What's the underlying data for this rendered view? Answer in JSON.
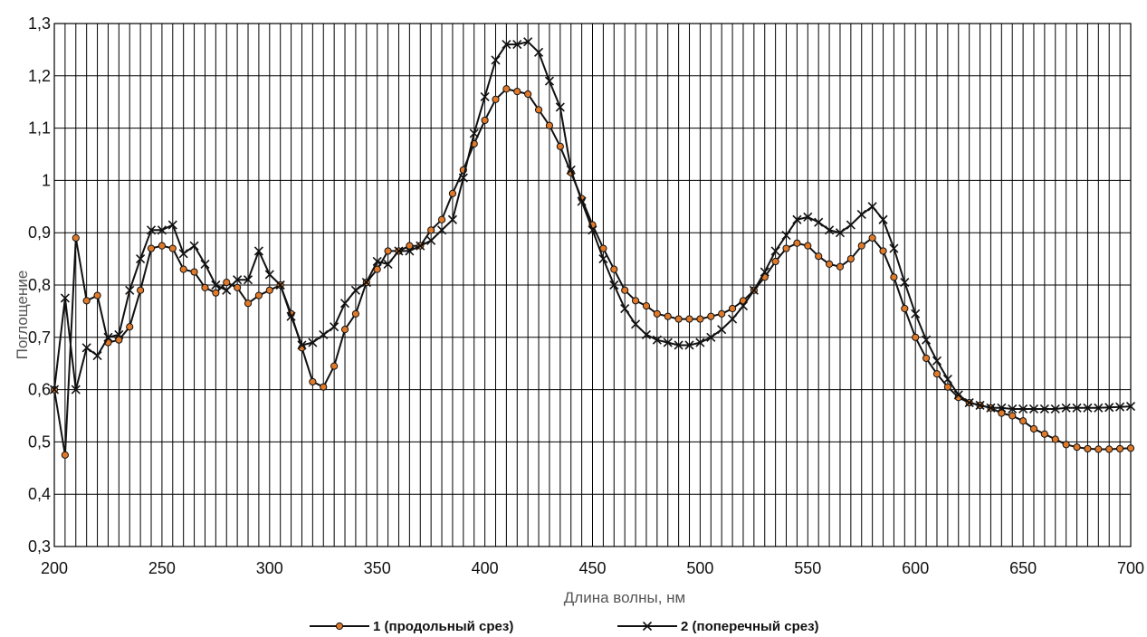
{
  "chart_data": {
    "type": "line",
    "xlabel": "Длина волны, нм",
    "ylabel": "Поглощение",
    "xlim": [
      200,
      700
    ],
    "ylim": [
      0.3,
      1.3
    ],
    "x_ticks": [
      200,
      250,
      300,
      350,
      400,
      450,
      500,
      550,
      600,
      650,
      700
    ],
    "y_ticks": [
      0.3,
      0.4,
      0.5,
      0.6,
      0.7,
      0.8,
      0.9,
      1.0,
      1.1,
      1.2,
      1.3
    ],
    "x_ticks_labels": [
      "200",
      "250",
      "300",
      "350",
      "400",
      "450",
      "500",
      "550",
      "600",
      "650",
      "700"
    ],
    "y_ticks_labels": [
      "0,3",
      "0,4",
      "0,5",
      "0,6",
      "0,7",
      "0,8",
      "0,9",
      "1",
      "1,1",
      "1,2",
      "1,3"
    ],
    "grid": true,
    "legend_position": "bottom",
    "series": [
      {
        "name": "1 (продольный срез)",
        "marker": "circle",
        "color": "#111111",
        "marker_fill": "#e07a2a",
        "x": [
          200,
          205,
          210,
          215,
          220,
          225,
          230,
          235,
          240,
          245,
          250,
          255,
          260,
          265,
          270,
          275,
          280,
          285,
          290,
          295,
          300,
          305,
          310,
          315,
          320,
          325,
          330,
          335,
          340,
          345,
          350,
          355,
          360,
          365,
          370,
          375,
          380,
          385,
          390,
          395,
          400,
          405,
          410,
          415,
          420,
          425,
          430,
          435,
          440,
          445,
          450,
          455,
          460,
          465,
          470,
          475,
          480,
          485,
          490,
          495,
          500,
          505,
          510,
          515,
          520,
          525,
          530,
          535,
          540,
          545,
          550,
          555,
          560,
          565,
          570,
          575,
          580,
          585,
          590,
          595,
          600,
          605,
          610,
          615,
          620,
          625,
          630,
          635,
          640,
          645,
          650,
          655,
          660,
          665,
          670,
          675,
          680,
          685,
          690,
          695,
          700
        ],
        "y": [
          0.6,
          0.475,
          0.89,
          0.77,
          0.78,
          0.69,
          0.695,
          0.72,
          0.79,
          0.87,
          0.875,
          0.87,
          0.83,
          0.825,
          0.795,
          0.785,
          0.805,
          0.795,
          0.765,
          0.78,
          0.79,
          0.8,
          0.745,
          0.68,
          0.615,
          0.605,
          0.645,
          0.715,
          0.745,
          0.805,
          0.83,
          0.865,
          0.865,
          0.875,
          0.875,
          0.905,
          0.925,
          0.975,
          1.02,
          1.07,
          1.115,
          1.155,
          1.175,
          1.17,
          1.165,
          1.135,
          1.105,
          1.065,
          1.015,
          0.965,
          0.915,
          0.87,
          0.83,
          0.79,
          0.77,
          0.76,
          0.745,
          0.74,
          0.735,
          0.735,
          0.735,
          0.74,
          0.745,
          0.755,
          0.77,
          0.79,
          0.815,
          0.845,
          0.87,
          0.88,
          0.875,
          0.855,
          0.84,
          0.835,
          0.85,
          0.875,
          0.89,
          0.865,
          0.815,
          0.755,
          0.7,
          0.66,
          0.63,
          0.605,
          0.585,
          0.575,
          0.57,
          0.565,
          0.555,
          0.55,
          0.54,
          0.525,
          0.515,
          0.505,
          0.495,
          0.49,
          0.487,
          0.486,
          0.486,
          0.487,
          0.488
        ]
      },
      {
        "name": "2 (поперечный срез)",
        "marker": "x",
        "color": "#111111",
        "x": [
          200,
          205,
          210,
          215,
          220,
          225,
          230,
          235,
          240,
          245,
          250,
          255,
          260,
          265,
          270,
          275,
          280,
          285,
          290,
          295,
          300,
          305,
          310,
          315,
          320,
          325,
          330,
          335,
          340,
          345,
          350,
          355,
          360,
          365,
          370,
          375,
          380,
          385,
          390,
          395,
          400,
          405,
          410,
          415,
          420,
          425,
          430,
          435,
          440,
          445,
          450,
          455,
          460,
          465,
          470,
          475,
          480,
          485,
          490,
          495,
          500,
          505,
          510,
          515,
          520,
          525,
          530,
          535,
          540,
          545,
          550,
          555,
          560,
          565,
          570,
          575,
          580,
          585,
          590,
          595,
          600,
          605,
          610,
          615,
          620,
          625,
          630,
          635,
          640,
          645,
          650,
          655,
          660,
          665,
          670,
          675,
          680,
          685,
          690,
          695,
          700
        ],
        "y": [
          0.6,
          0.775,
          0.6,
          0.68,
          0.665,
          0.7,
          0.705,
          0.79,
          0.85,
          0.905,
          0.905,
          0.915,
          0.86,
          0.875,
          0.84,
          0.8,
          0.79,
          0.81,
          0.81,
          0.865,
          0.82,
          0.8,
          0.74,
          0.685,
          0.69,
          0.705,
          0.72,
          0.765,
          0.79,
          0.805,
          0.845,
          0.84,
          0.865,
          0.865,
          0.875,
          0.885,
          0.905,
          0.925,
          1.005,
          1.09,
          1.16,
          1.23,
          1.26,
          1.26,
          1.265,
          1.245,
          1.19,
          1.14,
          1.02,
          0.96,
          0.905,
          0.85,
          0.8,
          0.755,
          0.725,
          0.705,
          0.695,
          0.69,
          0.685,
          0.685,
          0.69,
          0.7,
          0.715,
          0.735,
          0.76,
          0.79,
          0.825,
          0.865,
          0.895,
          0.925,
          0.93,
          0.92,
          0.905,
          0.9,
          0.915,
          0.935,
          0.95,
          0.925,
          0.87,
          0.805,
          0.745,
          0.695,
          0.655,
          0.62,
          0.59,
          0.575,
          0.57,
          0.565,
          0.565,
          0.563,
          0.563,
          0.563,
          0.563,
          0.563,
          0.565,
          0.565,
          0.565,
          0.565,
          0.566,
          0.567,
          0.568
        ]
      }
    ]
  }
}
